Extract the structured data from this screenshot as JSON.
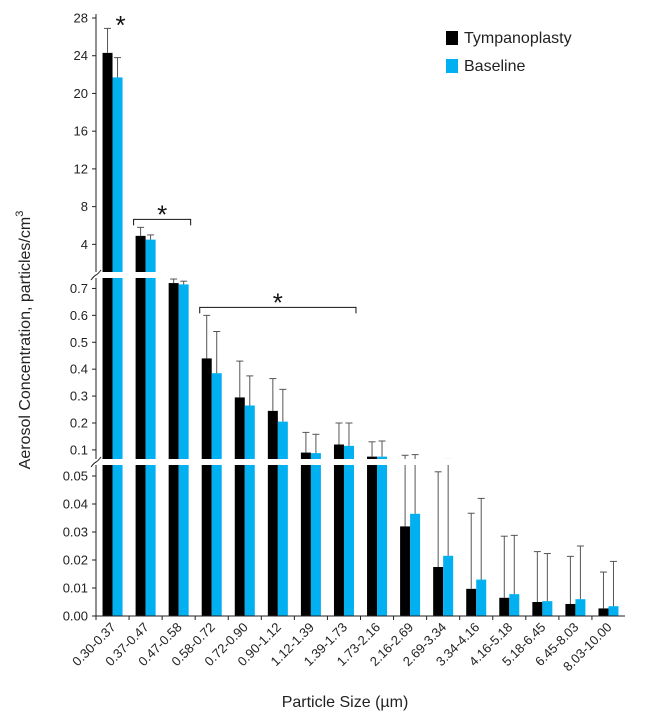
{
  "chart_data": {
    "type": "bar",
    "xlabel": "Particle Size (µm)",
    "ylabel": "Aerosol Concentration, particles/cm",
    "ylabel_superscript": "3",
    "categories": [
      "0.30-0.37",
      "0.37-0.47",
      "0.47-0.58",
      "0.58-0.72",
      "0.72-0.90",
      "0.90-1.12",
      "1.12-1.39",
      "1.39-1.73",
      "1.73-2.16",
      "2.16-2.69",
      "2.69-3.34",
      "3.34-4.16",
      "4.16-5.18",
      "5.18-6.45",
      "6.45-8.03",
      "8.03-10.00"
    ],
    "series": [
      {
        "name": "Tympanoplasty",
        "color": "#000000",
        "values": [
          24.3,
          4.9,
          0.72,
          0.44,
          0.295,
          0.245,
          0.09,
          0.12,
          0.075,
          0.032,
          0.0175,
          0.0097,
          0.0065,
          0.005,
          0.0043,
          0.0027
        ],
        "errors": [
          2.6,
          0.9,
          0.015,
          0.16,
          0.135,
          0.12,
          0.075,
          0.08,
          0.055,
          0.048,
          0.034,
          0.027,
          0.022,
          0.018,
          0.017,
          0.013
        ]
      },
      {
        "name": "Baseline",
        "color": "#00B0F0",
        "values": [
          21.7,
          4.5,
          0.715,
          0.385,
          0.265,
          0.205,
          0.088,
          0.115,
          0.075,
          0.0365,
          0.0215,
          0.013,
          0.0078,
          0.0053,
          0.006,
          0.0035
        ],
        "errors": [
          2.1,
          0.5,
          0.012,
          0.155,
          0.11,
          0.12,
          0.07,
          0.085,
          0.058,
          0.046,
          0.043,
          0.029,
          0.021,
          0.017,
          0.019,
          0.016
        ]
      }
    ],
    "y_segments": [
      {
        "range": [
          0,
          0.055
        ],
        "ticks": [
          "0.00",
          "0.01",
          "0.02",
          "0.03",
          "0.04",
          "0.05"
        ]
      },
      {
        "range": [
          0.055,
          0.75
        ],
        "ticks": [
          "0.1",
          "0.2",
          "0.3",
          "0.4",
          "0.5",
          "0.6",
          "0.7"
        ]
      },
      {
        "range": [
          0.75,
          28
        ],
        "ticks": [
          "4",
          "8",
          "12",
          "16",
          "20",
          "24",
          "28"
        ]
      }
    ],
    "legend_position": "top-right",
    "significance": [
      {
        "label": "*",
        "from": 0,
        "to": 0
      },
      {
        "label": "*",
        "from": 1,
        "to": 2
      },
      {
        "label": "*",
        "from": 3,
        "to": 7
      }
    ]
  }
}
